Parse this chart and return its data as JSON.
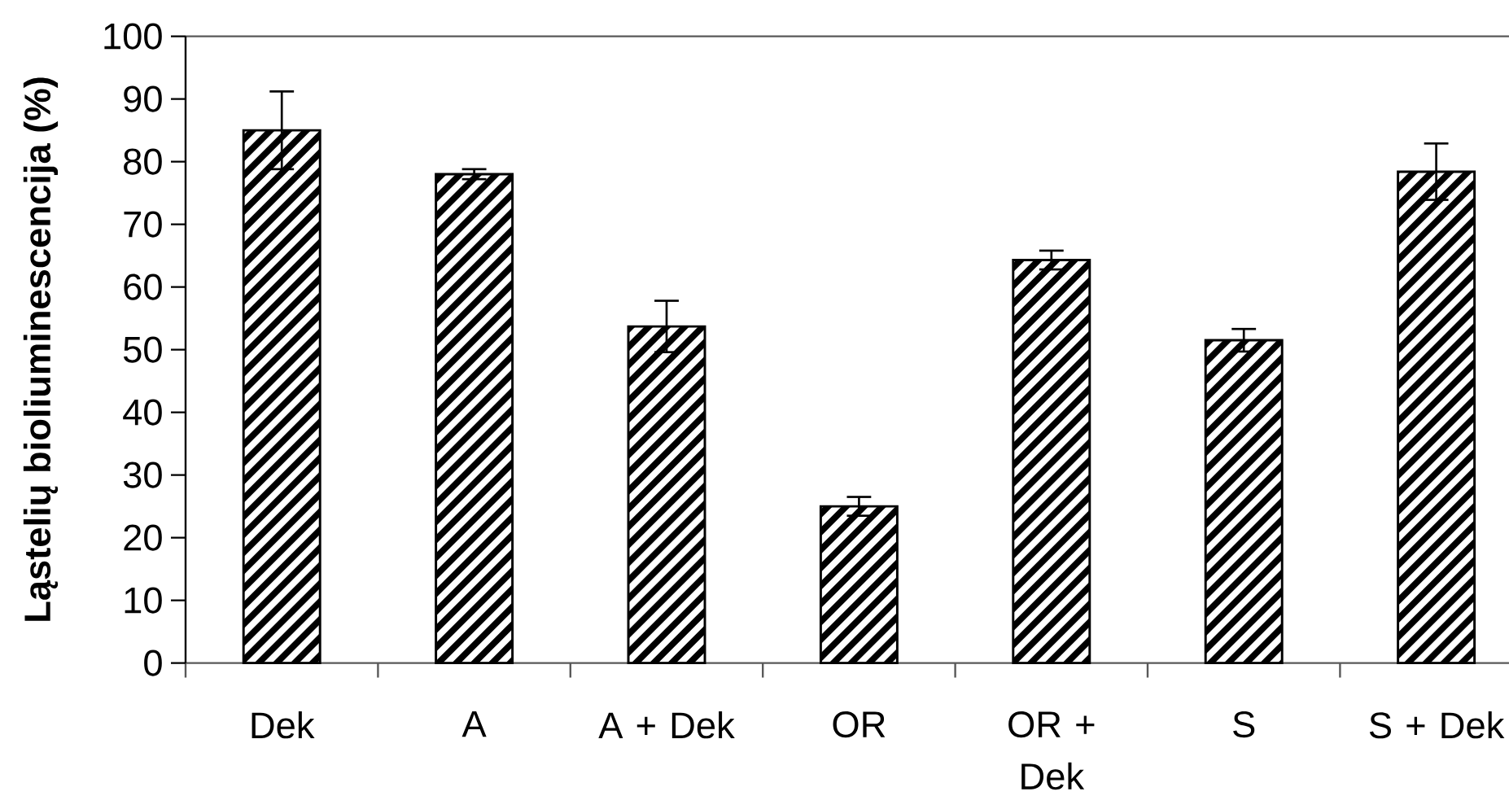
{
  "chart_data": {
    "type": "bar",
    "ylabel": "Ląstelių bioliuminescencija (%)",
    "categories": [
      "Dek",
      "A",
      "A + Dek",
      "OR",
      "OR + Dek",
      "S",
      "S + Dek"
    ],
    "values": [
      85.0,
      78.0,
      53.7,
      25.0,
      64.3,
      51.5,
      78.4
    ],
    "errors": [
      6.2,
      0.8,
      4.1,
      1.5,
      1.5,
      1.8,
      4.5
    ],
    "color": "#000000",
    "ylim": [
      0,
      100
    ],
    "yticks": [
      0,
      10,
      20,
      30,
      40,
      50,
      60,
      70,
      80,
      90,
      100
    ]
  }
}
